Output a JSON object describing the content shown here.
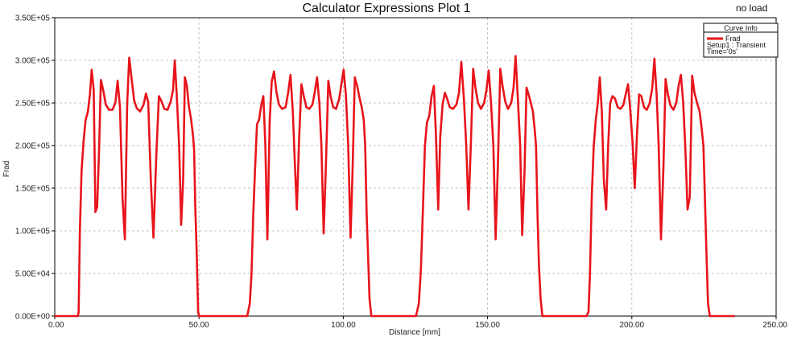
{
  "chart_data": {
    "type": "line",
    "title": "Calculator Expressions Plot 1",
    "corner_label": "no load",
    "xlabel": "Distance [mm]",
    "ylabel": "Frad",
    "xlim": [
      0,
      250
    ],
    "ylim": [
      0,
      350000
    ],
    "xticks": [
      0,
      50,
      100,
      150,
      200,
      250
    ],
    "xtick_labels": [
      "0.00",
      "50.00",
      "100.00",
      "150.00",
      "200.00",
      "250.00"
    ],
    "yticks": [
      0,
      50000,
      100000,
      150000,
      200000,
      250000,
      300000,
      350000
    ],
    "ytick_labels": [
      "0.00E+00",
      "5.00E+04",
      "1.00E+05",
      "1.50E+05",
      "2.00E+05",
      "2.50E+05",
      "3.00E+05",
      "3.50E+05"
    ],
    "grid": "dashed",
    "legend": {
      "title": "Curve Info",
      "entry": "Frad",
      "detail_lines": [
        "Setup1 : Transient",
        "Time='0s'"
      ],
      "placement": "top-right"
    },
    "series": [
      {
        "name": "Frad",
        "color": "#e8141b",
        "points": [
          [
            0,
            0
          ],
          [
            8.0,
            0
          ],
          [
            8.3,
            5000
          ],
          [
            8.7,
            100000
          ],
          [
            9.3,
            170000
          ],
          [
            10.0,
            205000
          ],
          [
            10.7,
            230000
          ],
          [
            11.5,
            240000
          ],
          [
            12.2,
            260000
          ],
          [
            12.8,
            289000
          ],
          [
            13.5,
            265000
          ],
          [
            14.1,
            122000
          ],
          [
            14.7,
            128000
          ],
          [
            15.4,
            200000
          ],
          [
            16.0,
            277000
          ],
          [
            16.8,
            265000
          ],
          [
            17.7,
            248000
          ],
          [
            18.8,
            242000
          ],
          [
            20.0,
            242000
          ],
          [
            21.0,
            250000
          ],
          [
            21.8,
            276000
          ],
          [
            22.6,
            245000
          ],
          [
            23.5,
            138000
          ],
          [
            24.3,
            90000
          ],
          [
            25.1,
            250000
          ],
          [
            25.8,
            303000
          ],
          [
            26.6,
            280000
          ],
          [
            27.5,
            253000
          ],
          [
            28.4,
            244000
          ],
          [
            29.6,
            240000
          ],
          [
            30.8,
            248000
          ],
          [
            31.6,
            261000
          ],
          [
            32.4,
            251000
          ],
          [
            33.3,
            160000
          ],
          [
            34.2,
            92000
          ],
          [
            35.2,
            190000
          ],
          [
            36.1,
            258000
          ],
          [
            37.0,
            252000
          ],
          [
            38.0,
            243000
          ],
          [
            39.1,
            242000
          ],
          [
            40.2,
            252000
          ],
          [
            41.0,
            265000
          ],
          [
            41.6,
            300000
          ],
          [
            42.3,
            258000
          ],
          [
            43.1,
            200000
          ],
          [
            43.8,
            107000
          ],
          [
            44.5,
            160000
          ],
          [
            45.1,
            280000
          ],
          [
            45.8,
            270000
          ],
          [
            46.5,
            245000
          ],
          [
            47.2,
            232000
          ],
          [
            47.9,
            212000
          ],
          [
            48.3,
            195000
          ],
          [
            48.7,
            130000
          ],
          [
            49.2,
            75000
          ],
          [
            49.7,
            5000
          ],
          [
            50.0,
            0
          ],
          [
            66.7,
            0
          ],
          [
            67.6,
            15000
          ],
          [
            68.2,
            50000
          ],
          [
            68.8,
            120000
          ],
          [
            69.4,
            170000
          ],
          [
            70.1,
            225000
          ],
          [
            70.8,
            230000
          ],
          [
            71.6,
            248000
          ],
          [
            72.3,
            258000
          ],
          [
            73.0,
            200000
          ],
          [
            73.7,
            90000
          ],
          [
            74.5,
            230000
          ],
          [
            75.2,
            275000
          ],
          [
            76.0,
            287000
          ],
          [
            76.8,
            263000
          ],
          [
            77.7,
            248000
          ],
          [
            78.8,
            243000
          ],
          [
            80.0,
            245000
          ],
          [
            80.9,
            262000
          ],
          [
            81.7,
            283000
          ],
          [
            82.5,
            240000
          ],
          [
            83.2,
            180000
          ],
          [
            83.9,
            125000
          ],
          [
            84.7,
            210000
          ],
          [
            85.5,
            272000
          ],
          [
            86.3,
            258000
          ],
          [
            87.2,
            245000
          ],
          [
            88.2,
            243000
          ],
          [
            89.3,
            248000
          ],
          [
            90.1,
            262000
          ],
          [
            90.9,
            280000
          ],
          [
            91.7,
            250000
          ],
          [
            92.4,
            200000
          ],
          [
            93.2,
            97000
          ],
          [
            94.0,
            180000
          ],
          [
            94.8,
            276000
          ],
          [
            95.6,
            258000
          ],
          [
            96.5,
            245000
          ],
          [
            97.5,
            243000
          ],
          [
            98.6,
            255000
          ],
          [
            99.4,
            273000
          ],
          [
            100.1,
            289000
          ],
          [
            100.9,
            260000
          ],
          [
            101.7,
            200000
          ],
          [
            102.5,
            92000
          ],
          [
            103.2,
            170000
          ],
          [
            104.0,
            280000
          ],
          [
            104.8,
            270000
          ],
          [
            105.7,
            255000
          ],
          [
            106.4,
            245000
          ],
          [
            107.1,
            230000
          ],
          [
            107.6,
            200000
          ],
          [
            108.1,
            120000
          ],
          [
            108.6,
            70000
          ],
          [
            109.1,
            20000
          ],
          [
            109.7,
            0
          ],
          [
            125.2,
            0
          ],
          [
            126.2,
            15000
          ],
          [
            126.9,
            55000
          ],
          [
            127.6,
            125000
          ],
          [
            128.3,
            200000
          ],
          [
            129.0,
            227000
          ],
          [
            129.8,
            235000
          ],
          [
            130.6,
            258000
          ],
          [
            131.4,
            270000
          ],
          [
            132.1,
            215000
          ],
          [
            132.9,
            125000
          ],
          [
            133.6,
            210000
          ],
          [
            134.4,
            248000
          ],
          [
            135.2,
            262000
          ],
          [
            136.0,
            255000
          ],
          [
            136.9,
            245000
          ],
          [
            138.0,
            243000
          ],
          [
            139.2,
            248000
          ],
          [
            140.1,
            262000
          ],
          [
            140.9,
            298000
          ],
          [
            141.8,
            255000
          ],
          [
            142.6,
            200000
          ],
          [
            143.4,
            125000
          ],
          [
            144.2,
            200000
          ],
          [
            145.0,
            290000
          ],
          [
            145.8,
            268000
          ],
          [
            146.7,
            250000
          ],
          [
            147.7,
            243000
          ],
          [
            148.8,
            250000
          ],
          [
            149.6,
            265000
          ],
          [
            150.4,
            288000
          ],
          [
            151.2,
            250000
          ],
          [
            152.0,
            200000
          ],
          [
            152.8,
            90000
          ],
          [
            153.6,
            180000
          ],
          [
            154.4,
            290000
          ],
          [
            155.2,
            270000
          ],
          [
            156.1,
            252000
          ],
          [
            157.1,
            243000
          ],
          [
            158.2,
            250000
          ],
          [
            159.0,
            268000
          ],
          [
            159.7,
            305000
          ],
          [
            160.5,
            255000
          ],
          [
            161.3,
            200000
          ],
          [
            162.0,
            95000
          ],
          [
            162.8,
            170000
          ],
          [
            163.5,
            268000
          ],
          [
            164.2,
            260000
          ],
          [
            165.0,
            250000
          ],
          [
            165.7,
            240000
          ],
          [
            166.3,
            220000
          ],
          [
            166.8,
            200000
          ],
          [
            167.3,
            120000
          ],
          [
            167.8,
            60000
          ],
          [
            168.4,
            20000
          ],
          [
            169.0,
            0
          ],
          [
            184.3,
            0
          ],
          [
            185.0,
            5000
          ],
          [
            185.5,
            50000
          ],
          [
            186.1,
            140000
          ],
          [
            186.8,
            200000
          ],
          [
            187.5,
            230000
          ],
          [
            188.2,
            250000
          ],
          [
            188.9,
            280000
          ],
          [
            189.6,
            240000
          ],
          [
            190.3,
            160000
          ],
          [
            191.1,
            125000
          ],
          [
            191.8,
            200000
          ],
          [
            192.5,
            250000
          ],
          [
            193.3,
            258000
          ],
          [
            194.2,
            255000
          ],
          [
            195.1,
            245000
          ],
          [
            196.1,
            243000
          ],
          [
            197.1,
            248000
          ],
          [
            198.0,
            262000
          ],
          [
            198.7,
            272000
          ],
          [
            199.5,
            240000
          ],
          [
            200.3,
            200000
          ],
          [
            201.0,
            150000
          ],
          [
            201.8,
            215000
          ],
          [
            202.5,
            260000
          ],
          [
            203.3,
            258000
          ],
          [
            204.2,
            245000
          ],
          [
            205.2,
            242000
          ],
          [
            206.2,
            250000
          ],
          [
            207.1,
            268000
          ],
          [
            207.8,
            302000
          ],
          [
            208.6,
            260000
          ],
          [
            209.3,
            200000
          ],
          [
            210.1,
            90000
          ],
          [
            210.9,
            170000
          ],
          [
            211.7,
            278000
          ],
          [
            212.5,
            260000
          ],
          [
            213.4,
            247000
          ],
          [
            214.4,
            242000
          ],
          [
            215.4,
            250000
          ],
          [
            216.2,
            270000
          ],
          [
            217.0,
            283000
          ],
          [
            217.8,
            250000
          ],
          [
            218.5,
            200000
          ],
          [
            219.3,
            125000
          ],
          [
            220.1,
            140000
          ],
          [
            220.9,
            282000
          ],
          [
            221.7,
            262000
          ],
          [
            222.6,
            250000
          ],
          [
            223.5,
            240000
          ],
          [
            224.2,
            220000
          ],
          [
            224.8,
            200000
          ],
          [
            225.4,
            130000
          ],
          [
            225.9,
            70000
          ],
          [
            226.4,
            15000
          ],
          [
            227.0,
            0
          ],
          [
            235.7,
            0
          ]
        ]
      }
    ]
  }
}
